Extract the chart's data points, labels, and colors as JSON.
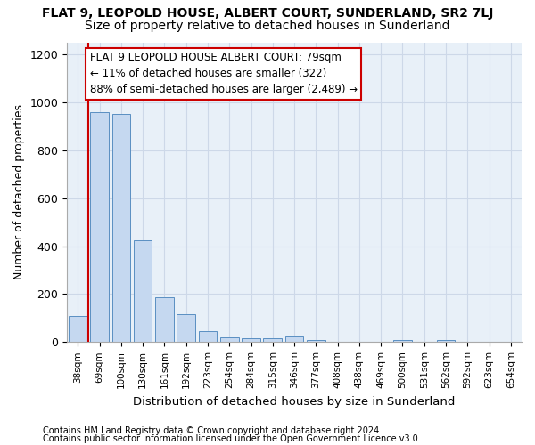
{
  "title": "FLAT 9, LEOPOLD HOUSE, ALBERT COURT, SUNDERLAND, SR2 7LJ",
  "subtitle": "Size of property relative to detached houses in Sunderland",
  "xlabel": "Distribution of detached houses by size in Sunderland",
  "ylabel": "Number of detached properties",
  "footer1": "Contains HM Land Registry data © Crown copyright and database right 2024.",
  "footer2": "Contains public sector information licensed under the Open Government Licence v3.0.",
  "bar_labels": [
    "38sqm",
    "69sqm",
    "100sqm",
    "130sqm",
    "161sqm",
    "192sqm",
    "223sqm",
    "254sqm",
    "284sqm",
    "315sqm",
    "346sqm",
    "377sqm",
    "408sqm",
    "438sqm",
    "469sqm",
    "500sqm",
    "531sqm",
    "562sqm",
    "592sqm",
    "623sqm",
    "654sqm"
  ],
  "bar_values": [
    110,
    960,
    950,
    425,
    185,
    115,
    47,
    20,
    15,
    15,
    25,
    10,
    0,
    0,
    0,
    10,
    0,
    10,
    0,
    0,
    0
  ],
  "bar_color": "#c5d8f0",
  "bar_edge_color": "#5a8fc2",
  "red_line_x": 0.575,
  "red_line_color": "#cc0000",
  "annotation_text": "FLAT 9 LEOPOLD HOUSE ALBERT COURT: 79sqm\n← 11% of detached houses are smaller (322)\n88% of semi-detached houses are larger (2,489) →",
  "annotation_box_color": "#ffffff",
  "annotation_box_edge_color": "#cc0000",
  "ylim": [
    0,
    1250
  ],
  "yticks": [
    0,
    200,
    400,
    600,
    800,
    1000,
    1200
  ],
  "grid_color": "#cdd8e8",
  "bg_color": "#e8f0f8",
  "title_fontsize": 10,
  "subtitle_fontsize": 10,
  "annotation_fontsize": 8.5,
  "ylabel_fontsize": 9,
  "xlabel_fontsize": 9.5
}
